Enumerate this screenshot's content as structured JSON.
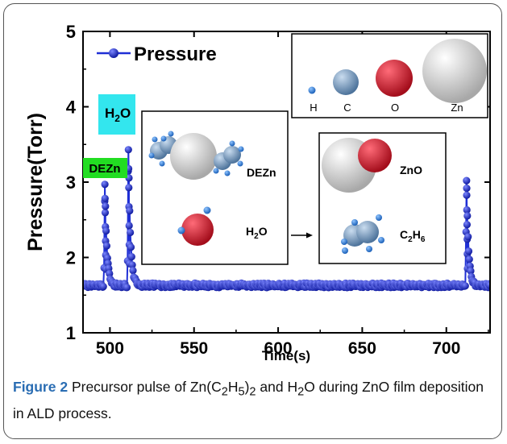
{
  "chart_data": {
    "type": "scatter",
    "xlabel": "Time(s)",
    "ylabel": "Pressure(Torr)",
    "xlim": [
      484,
      726
    ],
    "ylim": [
      1,
      5
    ],
    "xticks": [
      500,
      550,
      600,
      650,
      700
    ],
    "yticks": [
      1,
      2,
      3,
      4,
      5
    ],
    "grid": false,
    "legend_position": "top-left",
    "series": [
      {
        "name": "Pressure",
        "color": "#1f2fd6",
        "baseline": 1.63,
        "peaks": [
          {
            "x": 497,
            "y": 2.97,
            "label": "DEZn"
          },
          {
            "x": 511,
            "y": 3.43,
            "label": "H2O"
          },
          {
            "x": 712,
            "y": 3.02,
            "label": ""
          }
        ]
      }
    ],
    "annotations": {
      "dezn_tag": "DEZn",
      "h2o_tag_main": "H",
      "h2o_tag_sub": "2",
      "h2o_tag_end": "O"
    },
    "inset_atoms": {
      "labels": [
        "H",
        "C",
        "O",
        "Zn"
      ]
    },
    "inset_reaction": {
      "dezn": "DEZn",
      "water_main": "H",
      "water_sub": "2",
      "water_end": "O",
      "product1": "ZnO",
      "product2_main": "C",
      "product2_sub1": "2",
      "product2_mid": "H",
      "product2_sub2": "6"
    }
  },
  "caption": {
    "label": "Figure 2",
    "text": "Precursor pulse of Zn(C2H5)2 and H2O during ZnO film deposition in ALD process.",
    "parts": {
      "p1": "Precursor pulse of Zn(C",
      "s1": "2",
      "p2": "H",
      "s2": "5",
      "p3": ")",
      "s3": "2",
      "p4": " and H",
      "s4": "2",
      "p5": "O during ZnO film deposition in ALD process."
    }
  },
  "colors": {
    "series": "#1f2fd6",
    "dezn_tag_bg": "#22dd22",
    "h2o_tag_bg": "#33e6ee",
    "caption_label": "#2a6db3",
    "atom_H": "#2a7fd8",
    "atom_C": "#6e95be",
    "atom_O": "#d81a2a",
    "atom_Zn": "#d6d6d6"
  }
}
